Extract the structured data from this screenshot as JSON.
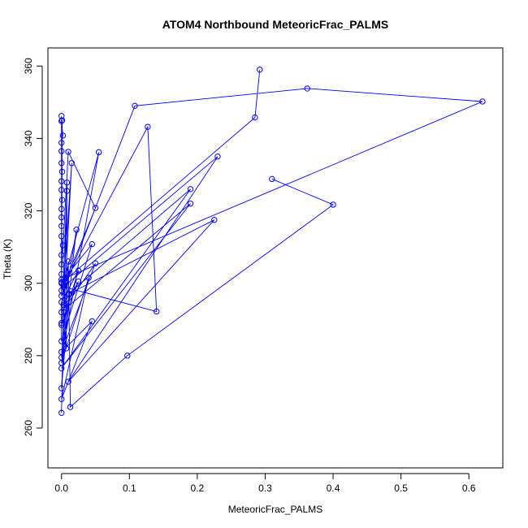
{
  "chart_data": {
    "type": "line",
    "title": "ATOM4 Northbound MeteoricFrac_PALMS",
    "xlabel": "MeteoricFrac_PALMS",
    "ylabel": "Theta (K)",
    "xlim": [
      -0.02,
      0.65
    ],
    "ylim": [
      249,
      365
    ],
    "x_ticks": [
      0.0,
      0.1,
      0.2,
      0.3,
      0.4,
      0.5,
      0.6
    ],
    "x_tick_labels": [
      "0.0",
      "0.1",
      "0.2",
      "0.3",
      "0.4",
      "0.5",
      "0.6"
    ],
    "y_ticks": [
      260,
      280,
      300,
      320,
      340,
      360
    ],
    "y_tick_labels": [
      "260",
      "280",
      "300",
      "320",
      "340",
      "360"
    ],
    "grid": false,
    "series": [
      {
        "color": "#0000ff",
        "marker": "open-circle",
        "points": [
          [
            0.292,
            359.0
          ],
          [
            0.285,
            345.8
          ],
          [
            0.0,
            300.0
          ],
          [
            0.001,
            345.0
          ],
          [
            0.0,
            296.5
          ],
          [
            0.108,
            349.0
          ],
          [
            0.362,
            353.8
          ],
          [
            0.62,
            350.2
          ],
          [
            0.0,
            301.0
          ],
          [
            0.0,
            346.2
          ],
          [
            0.0,
            344.8
          ],
          [
            0.002,
            340.8
          ],
          [
            0.0,
            338.8
          ],
          [
            0.0,
            336.5
          ],
          [
            0.0,
            333.2
          ],
          [
            0.001,
            330.8
          ],
          [
            0.0,
            328.2
          ],
          [
            0.0,
            325.8
          ],
          [
            0.001,
            323.0
          ],
          [
            0.0,
            320.5
          ],
          [
            0.0,
            318.2
          ],
          [
            0.0,
            315.8
          ],
          [
            0.0,
            313.0
          ],
          [
            0.002,
            310.5
          ],
          [
            0.0,
            307.8
          ],
          [
            0.0,
            305.2
          ],
          [
            0.0,
            302.5
          ],
          [
            0.01,
            336.3
          ],
          [
            0.05,
            320.8
          ],
          [
            0.0,
            298.0
          ],
          [
            0.055,
            336.2
          ],
          [
            0.0,
            279.5
          ],
          [
            0.015,
            333.2
          ],
          [
            0.003,
            299.5
          ],
          [
            0.127,
            343.2
          ],
          [
            0.14,
            292.2
          ],
          [
            0.003,
            299.0
          ],
          [
            0.23,
            335.0
          ],
          [
            0.01,
            272.8
          ],
          [
            0.225,
            317.5
          ],
          [
            0.01,
            297.0
          ],
          [
            0.19,
            326.0
          ],
          [
            0.0,
            276.5
          ],
          [
            0.19,
            322.0
          ],
          [
            0.007,
            293.2
          ],
          [
            0.0,
            300.3
          ],
          [
            0.045,
            310.8
          ],
          [
            0.0,
            284.0
          ],
          [
            0.0,
            294.8
          ],
          [
            0.025,
            303.5
          ],
          [
            0.0,
            288.5
          ],
          [
            0.025,
            300.5
          ],
          [
            0.0,
            292.0
          ],
          [
            0.05,
            305.5
          ],
          [
            0.0,
            281.0
          ],
          [
            0.045,
            289.5
          ],
          [
            0.0,
            268.0
          ],
          [
            0.04,
            301.5
          ],
          [
            0.0,
            278.0
          ],
          [
            0.022,
            314.8
          ],
          [
            0.0,
            289.0
          ],
          [
            0.008,
            325.5
          ],
          [
            0.0,
            264.2
          ],
          [
            0.008,
            327.8
          ],
          [
            0.007,
            282.0
          ],
          [
            0.003,
            294.0
          ],
          [
            0.012,
            297.0
          ],
          [
            0.0,
            271.0
          ],
          [
            0.01,
            306.0
          ],
          [
            0.013,
            265.8
          ],
          [
            0.097,
            280.0
          ],
          [
            0.4,
            321.7
          ],
          [
            0.31,
            328.8
          ]
        ]
      }
    ]
  }
}
